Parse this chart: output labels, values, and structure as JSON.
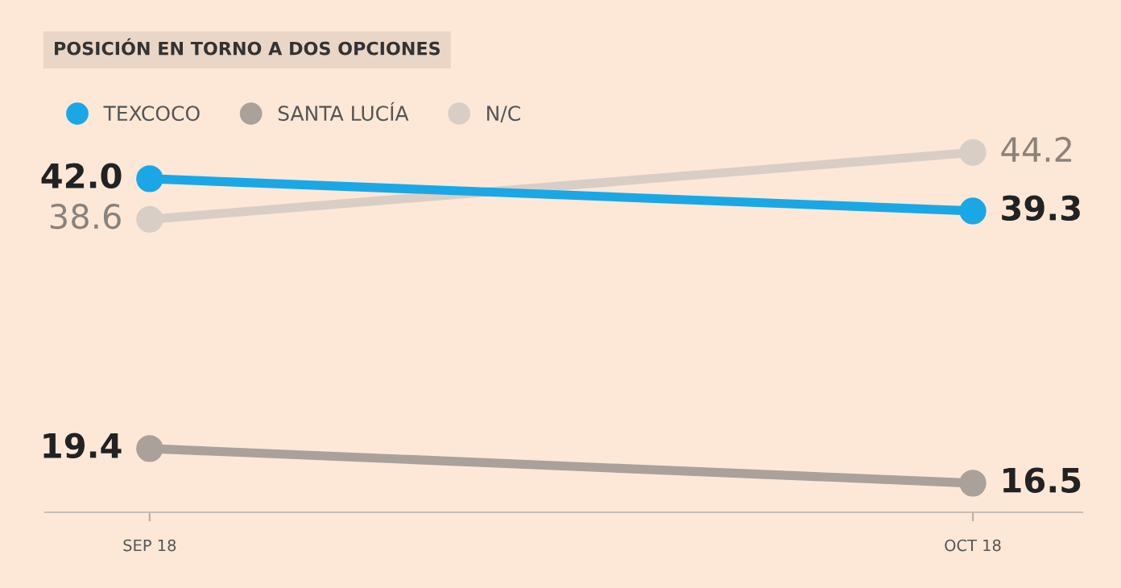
{
  "chart_data": {
    "type": "line",
    "title": "POSICIÓN EN TORNO A DOS OPCIONES",
    "categories": [
      "SEP 18",
      "OCT 18"
    ],
    "series": [
      {
        "name": "TEXCOCO",
        "color": "#1aa7e6",
        "values": [
          42.0,
          39.3
        ],
        "value_labels": [
          "42.0",
          "39.3"
        ]
      },
      {
        "name": "SANTA LUCÍA",
        "color": "#aaa19a",
        "values": [
          19.4,
          16.5
        ],
        "value_labels": [
          "19.4",
          "16.5"
        ]
      },
      {
        "name": "N/C",
        "color": "#d9cec6",
        "values": [
          38.6,
          44.2
        ],
        "value_labels": [
          "38.6",
          "44.2"
        ]
      }
    ],
    "tick_labels": "x",
    "legend": "top left",
    "marker": "circle",
    "line_style": "solid",
    "grid": false
  }
}
